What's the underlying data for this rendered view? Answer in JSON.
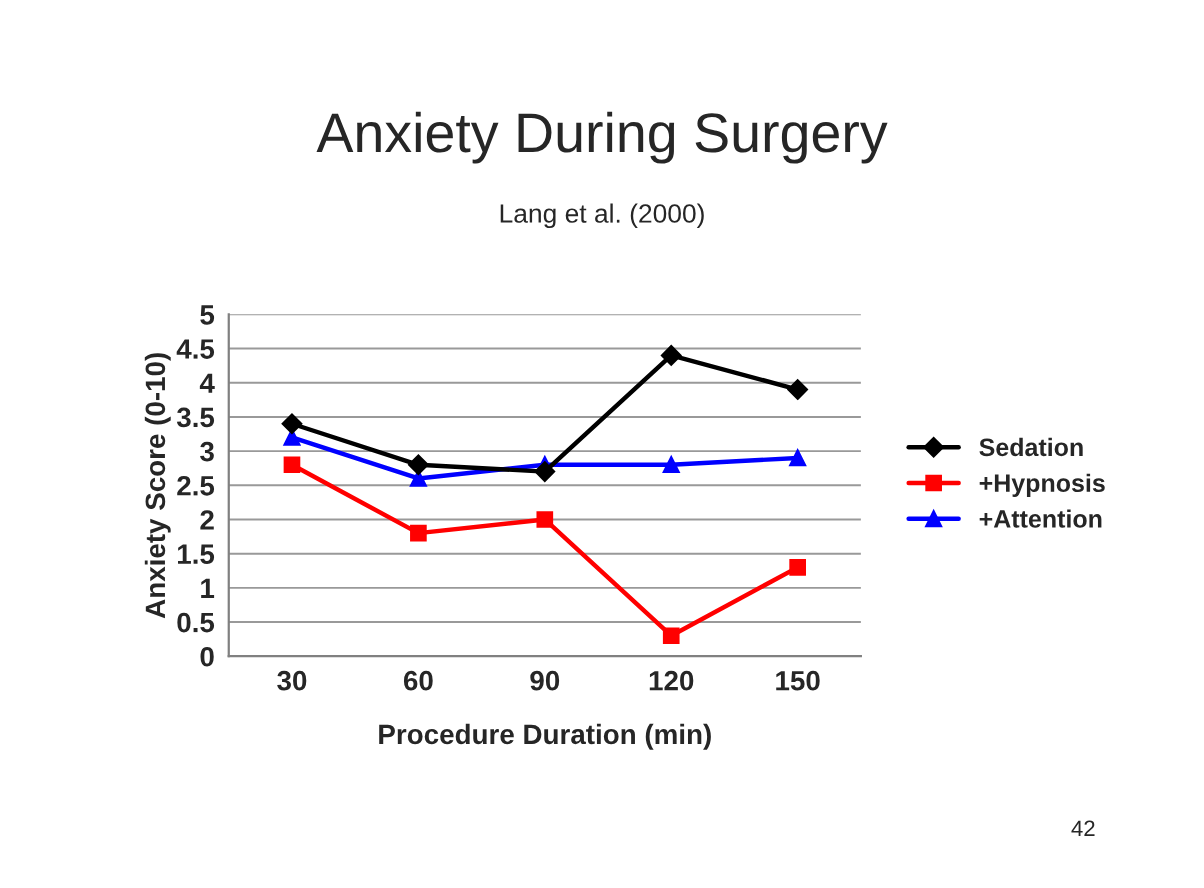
{
  "chart_data": {
    "type": "line",
    "title": "Anxiety During Surgery",
    "subtitle": "Lang et al. (2000)",
    "xlabel": "Procedure Duration (min)",
    "ylabel": "Anxiety Score (0-10)",
    "categories": [
      "30",
      "60",
      "90",
      "120",
      "150"
    ],
    "series": [
      {
        "name": "Sedation",
        "color": "#000000",
        "marker": "diamond",
        "values": [
          3.4,
          2.8,
          2.7,
          4.4,
          3.9
        ]
      },
      {
        "name": "+Hypnosis",
        "color": "#ff0000",
        "marker": "square",
        "values": [
          2.8,
          1.8,
          2.0,
          0.3,
          1.3
        ]
      },
      {
        "name": "+Attention",
        "color": "#0000ff",
        "marker": "triangle",
        "values": [
          3.2,
          2.6,
          2.8,
          2.8,
          2.9
        ]
      }
    ],
    "ylim": [
      0,
      5
    ],
    "yticks": [
      0,
      0.5,
      1,
      1.5,
      2,
      2.5,
      3,
      3.5,
      4,
      4.5,
      5
    ],
    "grid": "y",
    "legend": "right",
    "line_style": "solid",
    "annotations": [
      "42"
    ]
  }
}
